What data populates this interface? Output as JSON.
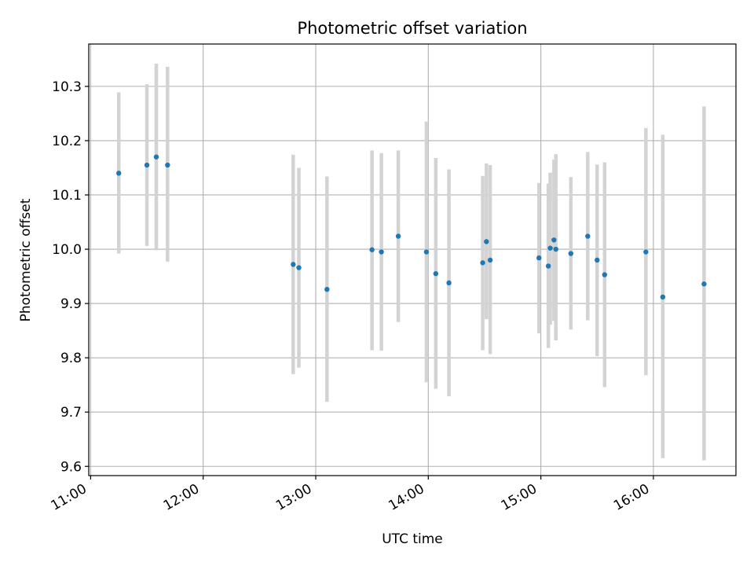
{
  "chart_data": {
    "type": "scatter",
    "title": "Photometric offset variation",
    "xlabel": "UTC time",
    "ylabel": "Photometric offset",
    "x_tick_labels": [
      "11:00",
      "12:00",
      "13:00",
      "14:00",
      "15:00",
      "16:00"
    ],
    "y_tick_labels": [
      "9.6",
      "9.7",
      "9.8",
      "9.9",
      "10.0",
      "10.1",
      "10.2",
      "10.3"
    ],
    "x_ticks": [
      "11:00",
      "12:00",
      "13:00",
      "14:00",
      "15:00",
      "16:00"
    ],
    "y_ticks": [
      9.6,
      9.7,
      9.8,
      9.9,
      10.0,
      10.1,
      10.2,
      10.3
    ],
    "xlim": [
      "10:59",
      "16:44"
    ],
    "ylim": [
      9.583,
      10.378
    ],
    "grid": true,
    "colors": {
      "points": "#1f77b4",
      "errorbars": "#d3d3d3",
      "grid": "#b0b0b0"
    },
    "points": [
      {
        "x": "11:15",
        "y": 10.14,
        "ylow": 9.992,
        "yhigh": 10.289
      },
      {
        "x": "11:30",
        "y": 10.155,
        "ylow": 10.006,
        "yhigh": 10.304
      },
      {
        "x": "11:35",
        "y": 10.17,
        "ylow": 9.998,
        "yhigh": 10.342
      },
      {
        "x": "11:41",
        "y": 10.155,
        "ylow": 9.977,
        "yhigh": 10.336
      },
      {
        "x": "12:48",
        "y": 9.972,
        "ylow": 9.77,
        "yhigh": 10.174
      },
      {
        "x": "12:51",
        "y": 9.966,
        "ylow": 9.782,
        "yhigh": 10.15
      },
      {
        "x": "13:06",
        "y": 9.926,
        "ylow": 9.719,
        "yhigh": 10.134
      },
      {
        "x": "13:30",
        "y": 9.999,
        "ylow": 9.814,
        "yhigh": 10.182
      },
      {
        "x": "13:35",
        "y": 9.995,
        "ylow": 9.813,
        "yhigh": 10.177
      },
      {
        "x": "13:44",
        "y": 10.024,
        "ylow": 9.866,
        "yhigh": 10.182
      },
      {
        "x": "13:59",
        "y": 9.995,
        "ylow": 9.755,
        "yhigh": 10.235
      },
      {
        "x": "14:04",
        "y": 9.955,
        "ylow": 9.743,
        "yhigh": 10.168
      },
      {
        "x": "14:11",
        "y": 9.938,
        "ylow": 9.729,
        "yhigh": 10.147
      },
      {
        "x": "14:29",
        "y": 9.975,
        "ylow": 9.814,
        "yhigh": 10.135
      },
      {
        "x": "14:31",
        "y": 10.014,
        "ylow": 9.871,
        "yhigh": 10.158
      },
      {
        "x": "14:33",
        "y": 9.98,
        "ylow": 9.807,
        "yhigh": 10.155
      },
      {
        "x": "14:59",
        "y": 9.984,
        "ylow": 9.845,
        "yhigh": 10.122
      },
      {
        "x": "15:04",
        "y": 9.969,
        "ylow": 9.818,
        "yhigh": 10.121
      },
      {
        "x": "15:05",
        "y": 10.002,
        "ylow": 9.861,
        "yhigh": 10.141
      },
      {
        "x": "15:07",
        "y": 10.017,
        "ylow": 9.868,
        "yhigh": 10.165
      },
      {
        "x": "15:08",
        "y": 10.0,
        "ylow": 9.832,
        "yhigh": 10.175
      },
      {
        "x": "15:16",
        "y": 9.992,
        "ylow": 9.852,
        "yhigh": 10.133
      },
      {
        "x": "15:25",
        "y": 10.024,
        "ylow": 9.869,
        "yhigh": 10.179
      },
      {
        "x": "15:30",
        "y": 9.98,
        "ylow": 9.803,
        "yhigh": 10.156
      },
      {
        "x": "15:34",
        "y": 9.953,
        "ylow": 9.746,
        "yhigh": 10.16
      },
      {
        "x": "15:56",
        "y": 9.995,
        "ylow": 9.768,
        "yhigh": 10.223
      },
      {
        "x": "16:05",
        "y": 9.912,
        "ylow": 9.615,
        "yhigh": 10.211
      },
      {
        "x": "16:27",
        "y": 9.936,
        "ylow": 9.611,
        "yhigh": 10.263
      }
    ]
  }
}
